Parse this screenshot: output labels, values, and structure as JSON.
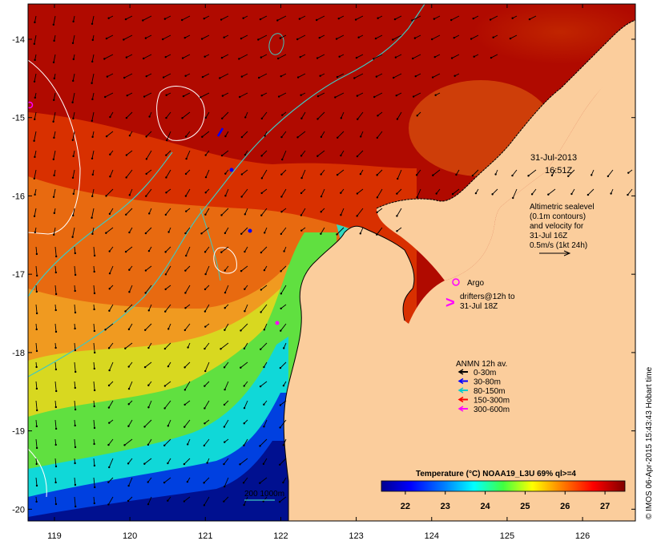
{
  "map": {
    "lon_min": 118.65,
    "lon_max": 126.7,
    "lat_min": -20.15,
    "lat_max": -13.55,
    "x_ticks": [
      119,
      120,
      121,
      122,
      123,
      124,
      125,
      126
    ],
    "y_ticks": [
      -14,
      -15,
      -16,
      -17,
      -18,
      -19,
      -20
    ],
    "x_tick_labels": [
      "119",
      "120",
      "121",
      "122",
      "123",
      "124",
      "125",
      "126"
    ],
    "y_tick_labels": [
      "-14",
      "-15",
      "-16",
      "-17",
      "-18",
      "-19",
      "-20"
    ]
  },
  "annotations": {
    "datetime_line1": "31-Jul-2013",
    "datetime_line2": "16:51Z",
    "altimetric_line1": "Altimetric sealevel",
    "altimetric_line2": "(0.1m contours)",
    "altimetric_line3": "and velocity for",
    "altimetric_line4": "31-Jul 16Z",
    "altimetric_line5": "0.5m/s (1kt 24h)",
    "argo_label": "Argo",
    "drifters_line1": "drifters@12h to",
    "drifters_line2": "31-Jul 18Z",
    "anmn_title": "ANMN 12h av.",
    "contour_label": "200  1000m",
    "credit": "© IMOS 06-Apr-2015 15:43:43 Hobart time"
  },
  "anmn_legend": [
    {
      "label": "0-30m",
      "color": "#000000"
    },
    {
      "label": "30-80m",
      "color": "#0000ff"
    },
    {
      "label": "80-150m",
      "color": "#00cccc"
    },
    {
      "label": "150-300m",
      "color": "#ff0000"
    },
    {
      "label": "300-600m",
      "color": "#ff00ff"
    }
  ],
  "colorbar": {
    "title": "Temperature (°C) NOAA19_L3U 69% ql>=4",
    "min": 21.4,
    "max": 27.5,
    "ticks": [
      22,
      23,
      24,
      25,
      26,
      27
    ],
    "tick_labels": [
      "22",
      "23",
      "24",
      "25",
      "26",
      "27"
    ]
  },
  "colors": {
    "land": "#fbcd9c",
    "contour_isobath": "#40c8c0",
    "sealevel_contour": "#ffffff",
    "argo_marker": "#ff00ff"
  }
}
